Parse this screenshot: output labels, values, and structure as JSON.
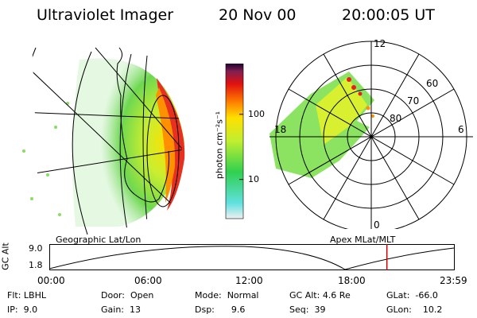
{
  "header": {
    "instrument": "Ultraviolet Imager",
    "date": "20 Nov 00",
    "time": "20:00:05 UT"
  },
  "colorbar": {
    "unit_label": "photon cm⁻²s⁻¹",
    "tick_labels": [
      "100",
      "10"
    ],
    "tick_values": [
      100,
      10
    ],
    "range": [
      2.5,
      600
    ],
    "scale": "log"
  },
  "polar_plot": {
    "hour_labels": [
      "12",
      "18",
      "6",
      "0"
    ],
    "lat_labels": [
      "60",
      "70",
      "80"
    ]
  },
  "panel_labels": {
    "left": "Geographic Lat/Lon",
    "right": "Apex MLat/MLT"
  },
  "altitude_plot": {
    "ylabel": "GC Alt",
    "ytick_labels": [
      "9.0",
      "1.8"
    ],
    "yrange": [
      1.8,
      9.0
    ],
    "x_tick_labels": [
      "00:00",
      "06:00",
      "12:00",
      "18:00",
      "23:59"
    ],
    "current_time_hours": 20.0,
    "current_marker_color": "#cc0000"
  },
  "info": {
    "col1": [
      {
        "key": "Flt:",
        "value": "LBHL"
      },
      {
        "key": "IP:",
        "value": "9.0"
      }
    ],
    "col2": [
      {
        "key": "Door:",
        "value": "Open"
      },
      {
        "key": "Gain:",
        "value": "13"
      }
    ],
    "col3": [
      {
        "key": "Mode:",
        "value": "Normal"
      },
      {
        "key": "Dsp:",
        "value": "9.6"
      }
    ],
    "col4": [
      {
        "key": "GC Alt:",
        "value": "4.6 Re"
      },
      {
        "key": "Seq:",
        "value": "39"
      }
    ],
    "col5": [
      {
        "key": "GLat:",
        "value": "-66.0"
      },
      {
        "key": "GLon:",
        "value": "10.2"
      }
    ]
  }
}
